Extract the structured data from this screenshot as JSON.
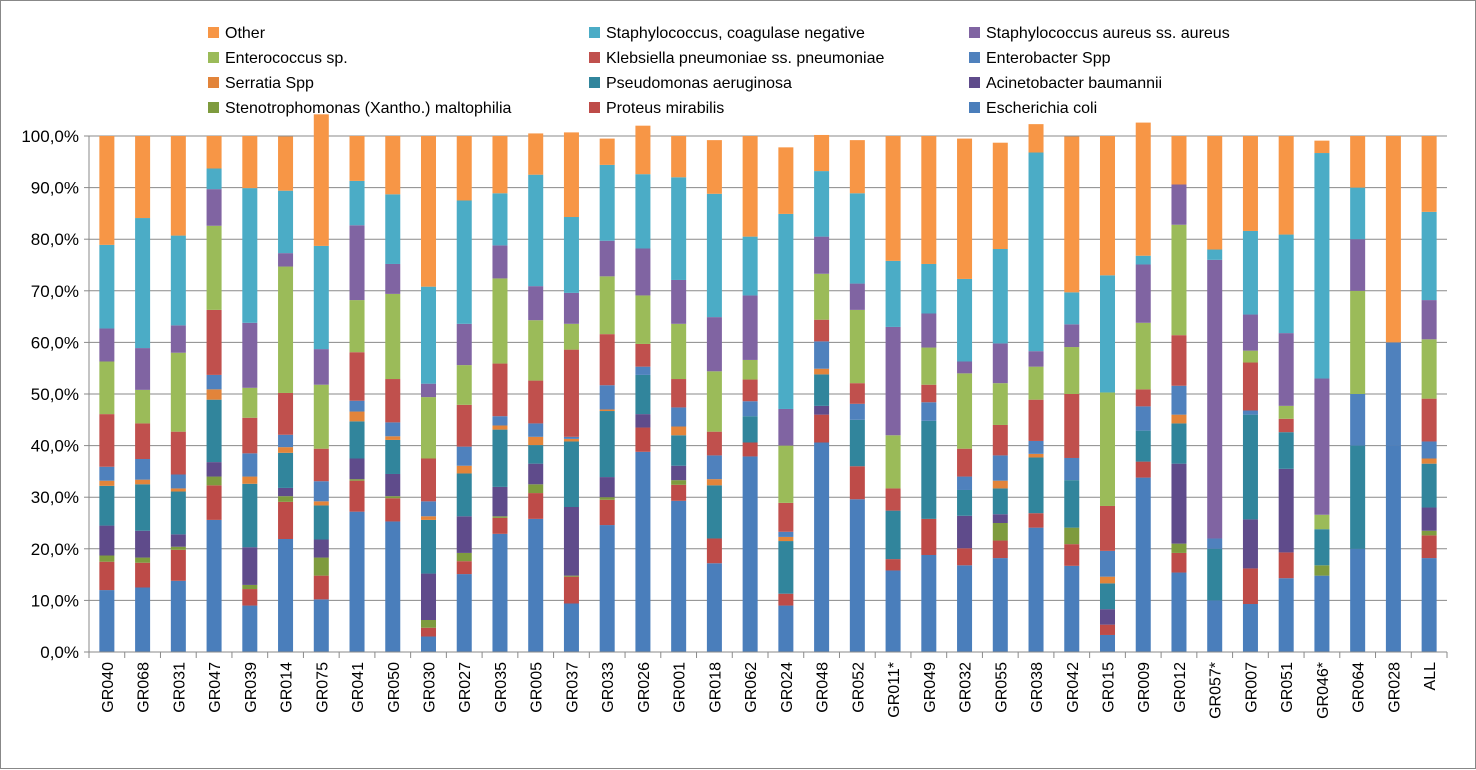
{
  "chart_data": {
    "type": "stacked-bar-100",
    "title": "",
    "xlabel": "",
    "ylabel": "",
    "ylim": [
      0,
      100
    ],
    "yticks": [
      "0,0%",
      "10,0%",
      "20,0%",
      "30,0%",
      "40,0%",
      "50,0%",
      "60,0%",
      "70,0%",
      "80,0%",
      "90,0%",
      "100,0%"
    ],
    "grid": true,
    "legend_position": "top",
    "categories": [
      "GR040",
      "GR068",
      "GR031",
      "GR047",
      "GR039",
      "GR014",
      "GR075",
      "GR041",
      "GR050",
      "GR030",
      "GR027",
      "GR035",
      "GR005",
      "GR037",
      "GR033",
      "GR026",
      "GR001",
      "GR018",
      "GR062",
      "GR024",
      "GR048",
      "GR052",
      "GR011*",
      "GR049",
      "GR032",
      "GR055",
      "GR038",
      "GR042",
      "GR015",
      "GR009",
      "GR012",
      "GR057*",
      "GR007",
      "GR051",
      "GR046*",
      "GR064",
      "GR028",
      "ALL"
    ],
    "legend_order": [
      "Other",
      "Staphylococcus, coagulase negative",
      "Staphylococcus aureus ss. aureus",
      "Enterococcus sp.",
      "Klebsiella pneumoniae ss. pneumoniae",
      "Enterobacter Spp",
      "Serratia Spp",
      "Pseudomonas aeruginosa",
      "Acinetobacter baumannii",
      "Stenotrophomonas (Xantho.) maltophilia",
      "Proteus mirabilis",
      "Escherichia coli"
    ],
    "series": [
      {
        "name": "Escherichia coli",
        "color": "#4A7EBB",
        "values": [
          12.0,
          12.5,
          13.8,
          25.6,
          9.0,
          21.9,
          10.2,
          27.2,
          25.3,
          3.0,
          15.1,
          22.9,
          25.8,
          9.4,
          24.6,
          38.8,
          29.3,
          17.2,
          37.9,
          9.0,
          40.6,
          29.6,
          15.8,
          18.8,
          16.8,
          18.2,
          24.1,
          16.7,
          3.3,
          33.8,
          15.4,
          10.0,
          9.3,
          14.3,
          14.8,
          20.0,
          40.0,
          18.2
        ]
      },
      {
        "name": "Proteus mirabilis",
        "color": "#BE4B48",
        "values": [
          5.5,
          4.8,
          6.0,
          6.7,
          3.2,
          7.2,
          4.6,
          6.0,
          4.5,
          1.7,
          2.5,
          3.1,
          5.0,
          5.2,
          4.9,
          4.7,
          3.1,
          4.8,
          2.7,
          2.3,
          5.4,
          6.4,
          2.2,
          7.0,
          3.3,
          3.4,
          2.8,
          4.2,
          2.0,
          3.1,
          3.8,
          0.0,
          6.9,
          5.0,
          0.0,
          0.0,
          0.0,
          4.4
        ]
      },
      {
        "name": "Stenotrophomonas (Xantho.) maltophilia",
        "color": "#7E9B3E",
        "values": [
          1.2,
          1.0,
          0.6,
          1.7,
          0.8,
          1.1,
          3.5,
          0.3,
          0.4,
          1.5,
          1.6,
          0.3,
          1.7,
          0.2,
          0.5,
          0.0,
          0.9,
          0.0,
          0.0,
          0.0,
          0.0,
          0.0,
          0.0,
          0.0,
          0.0,
          3.4,
          0.0,
          3.2,
          0.0,
          0.0,
          1.8,
          0.0,
          0.0,
          0.0,
          2.0,
          0.0,
          0.0,
          0.9
        ]
      },
      {
        "name": "Acinetobacter baumannii",
        "color": "#5F4B8B",
        "values": [
          5.8,
          5.2,
          2.4,
          2.8,
          7.3,
          1.6,
          3.5,
          4.0,
          4.3,
          9.0,
          7.1,
          5.7,
          4.0,
          13.3,
          3.9,
          2.6,
          2.8,
          0.0,
          0.0,
          0.0,
          1.7,
          0.0,
          0.0,
          0.0,
          6.3,
          1.7,
          0.0,
          0.0,
          3.0,
          0.0,
          15.5,
          0.0,
          9.5,
          16.2,
          0.0,
          0.0,
          0.0,
          4.5
        ]
      },
      {
        "name": "Pseudomonas aeruginosa",
        "color": "#31859C",
        "values": [
          7.7,
          9.0,
          8.3,
          12.1,
          12.3,
          6.8,
          6.6,
          7.2,
          6.6,
          10.4,
          8.3,
          11.1,
          3.6,
          12.7,
          12.8,
          7.6,
          5.9,
          10.3,
          5.1,
          10.2,
          6.1,
          9.0,
          9.4,
          19.0,
          5.0,
          5.0,
          10.8,
          9.2,
          5.0,
          6.0,
          7.8,
          10.0,
          20.3,
          7.1,
          7.0,
          20.0,
          0.0,
          8.5
        ]
      },
      {
        "name": "Serratia Spp",
        "color": "#E2843A",
        "values": [
          1.0,
          0.9,
          0.6,
          2.0,
          1.4,
          1.1,
          0.8,
          1.9,
          0.7,
          0.7,
          1.5,
          0.8,
          1.6,
          0.5,
          0.3,
          0.0,
          1.7,
          1.2,
          0.0,
          0.8,
          1.1,
          0.0,
          0.0,
          0.0,
          0.0,
          1.5,
          0.7,
          0.0,
          1.3,
          0.0,
          1.7,
          0.0,
          0.0,
          0.0,
          0.0,
          0.0,
          0.0,
          1.0
        ]
      },
      {
        "name": "Enterobacter Spp",
        "color": "#4F81BD",
        "values": [
          2.7,
          4.0,
          2.7,
          2.8,
          4.5,
          2.4,
          3.9,
          2.1,
          2.7,
          2.9,
          3.7,
          1.8,
          2.6,
          0.4,
          4.7,
          1.6,
          3.7,
          4.6,
          2.9,
          1.0,
          5.3,
          3.1,
          0.0,
          3.6,
          2.6,
          4.9,
          2.5,
          4.3,
          5.0,
          4.7,
          5.6,
          2.0,
          0.8,
          0.0,
          0.0,
          10.0,
          20.0,
          3.3
        ]
      },
      {
        "name": "Klebsiella pneumoniae ss. pneumoniae",
        "color": "#C0504D",
        "values": [
          10.2,
          6.9,
          8.3,
          12.6,
          6.9,
          8.1,
          6.3,
          9.4,
          8.4,
          8.3,
          8.1,
          10.2,
          8.3,
          16.9,
          9.9,
          4.4,
          5.5,
          4.6,
          4.2,
          5.6,
          4.2,
          4.0,
          4.3,
          3.4,
          5.4,
          5.9,
          8.0,
          12.4,
          8.7,
          3.3,
          9.8,
          0.0,
          9.3,
          2.6,
          0.0,
          0.0,
          0.0,
          8.3
        ]
      },
      {
        "name": "Enterococcus sp.",
        "color": "#9BBB59",
        "values": [
          10.2,
          6.5,
          15.3,
          16.3,
          5.8,
          24.5,
          12.4,
          10.1,
          16.5,
          11.9,
          7.7,
          16.5,
          11.7,
          5.0,
          11.2,
          9.4,
          10.7,
          11.7,
          3.8,
          11.1,
          8.9,
          14.2,
          10.3,
          7.2,
          14.6,
          8.1,
          6.4,
          9.1,
          22.0,
          12.9,
          21.4,
          0.0,
          2.3,
          2.5,
          2.8,
          20.0,
          0.0,
          11.5
        ]
      },
      {
        "name": "Staphylococcus aureus ss. aureus",
        "color": "#8064A2",
        "values": [
          6.4,
          8.1,
          5.3,
          7.1,
          12.6,
          2.6,
          6.9,
          14.5,
          5.8,
          2.6,
          8.0,
          6.4,
          6.6,
          6.0,
          6.9,
          9.1,
          8.5,
          10.5,
          12.5,
          7.1,
          7.2,
          5.1,
          21.0,
          6.6,
          2.3,
          7.7,
          3.0,
          4.4,
          0.0,
          11.3,
          7.8,
          54.0,
          7.0,
          14.1,
          26.4,
          10.0,
          0.0,
          7.6
        ]
      },
      {
        "name": "Staphylococcus, coagulase negative",
        "color": "#4BACC6",
        "values": [
          16.2,
          25.2,
          17.4,
          4.0,
          26.1,
          12.1,
          20.0,
          8.6,
          13.5,
          18.8,
          23.9,
          10.1,
          21.6,
          14.7,
          14.7,
          14.4,
          19.9,
          23.9,
          11.4,
          37.8,
          12.7,
          17.5,
          12.8,
          9.6,
          16.0,
          18.3,
          38.5,
          6.2,
          22.7,
          1.7,
          0.0,
          2.0,
          16.2,
          19.1,
          43.7,
          10.0,
          0.0,
          17.1
        ]
      },
      {
        "name": "Other",
        "color": "#F79646",
        "values": [
          21.1,
          15.9,
          19.3,
          6.3,
          10.1,
          10.5,
          25.5,
          8.7,
          11.3,
          29.2,
          12.5,
          11.1,
          8.0,
          16.4,
          5.1,
          9.4,
          8.0,
          10.4,
          19.5,
          12.9,
          7.0,
          10.3,
          24.2,
          24.8,
          27.2,
          20.6,
          5.5,
          30.2,
          27.0,
          25.8,
          9.4,
          22.0,
          18.4,
          19.1,
          2.4,
          10.0,
          40.0,
          14.7
        ]
      }
    ]
  }
}
